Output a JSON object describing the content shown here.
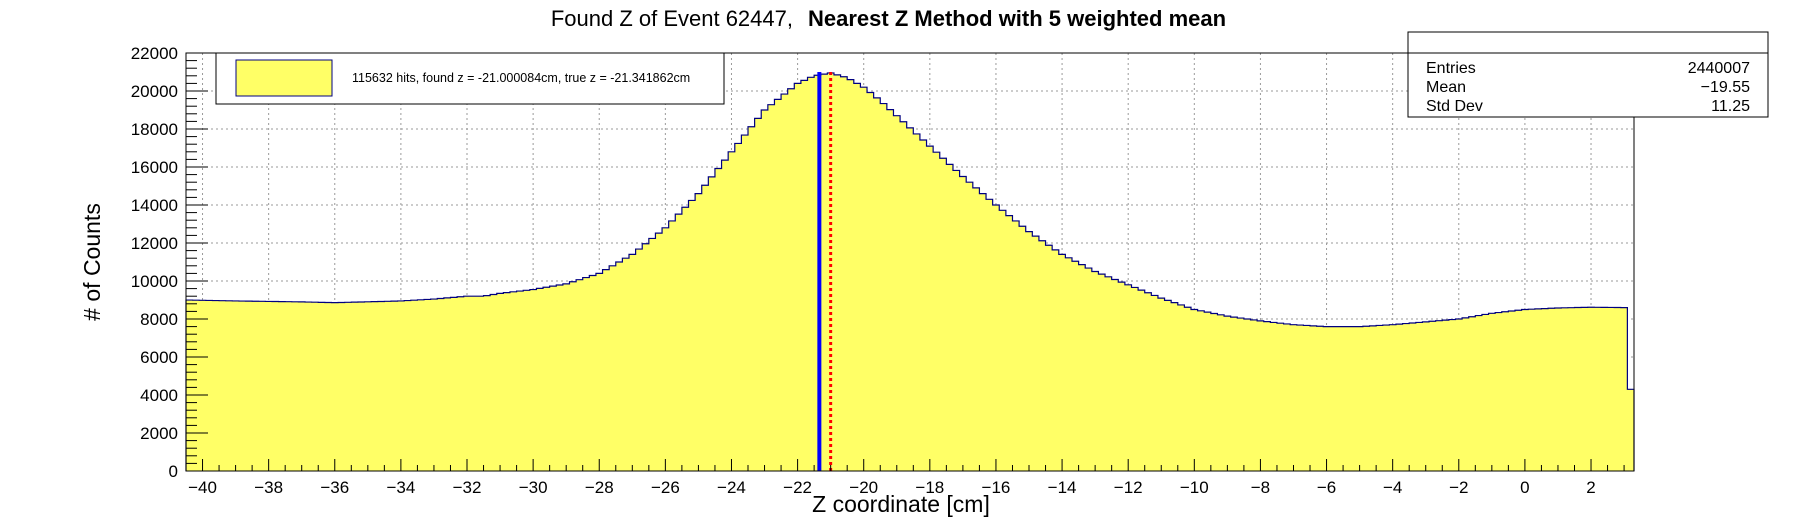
{
  "chart_data": {
    "type": "histogram",
    "title": "Found Z of Event 62447,",
    "title_bold": "Nearest Z Method with 5 weighted mean",
    "xlabel": "Z coordinate [cm]",
    "ylabel": "# of Counts",
    "xlim": [
      -40.5,
      3.3
    ],
    "ylim": [
      0,
      22000
    ],
    "x_ticks": [
      -40,
      -38,
      -36,
      -34,
      -32,
      -30,
      -28,
      -26,
      -24,
      -22,
      -20,
      -18,
      -16,
      -14,
      -12,
      -10,
      -8,
      -6,
      -4,
      -2,
      0,
      2
    ],
    "y_ticks": [
      0,
      2000,
      4000,
      6000,
      8000,
      10000,
      12000,
      14000,
      16000,
      18000,
      20000,
      22000
    ],
    "grid": true,
    "fill_color": "#ffff66",
    "line_color": "#000080",
    "profile": [
      [
        -40.5,
        9000
      ],
      [
        -39,
        8950
      ],
      [
        -37,
        8900
      ],
      [
        -36,
        8860
      ],
      [
        -34,
        8950
      ],
      [
        -33,
        9050
      ],
      [
        -32,
        9200
      ],
      [
        -31.5,
        9200
      ],
      [
        -31,
        9350
      ],
      [
        -30,
        9550
      ],
      [
        -29,
        9850
      ],
      [
        -28,
        10400
      ],
      [
        -27,
        11400
      ],
      [
        -26,
        12800
      ],
      [
        -25,
        14600
      ],
      [
        -24,
        16800
      ],
      [
        -23,
        19000
      ],
      [
        -22,
        20400
      ],
      [
        -21.5,
        20800
      ],
      [
        -21,
        20950
      ],
      [
        -20.5,
        20700
      ],
      [
        -20,
        20200
      ],
      [
        -19.5,
        19500
      ],
      [
        -19,
        18700
      ],
      [
        -18,
        17100
      ],
      [
        -17,
        15500
      ],
      [
        -16,
        14000
      ],
      [
        -15,
        12600
      ],
      [
        -14,
        11400
      ],
      [
        -13,
        10500
      ],
      [
        -12,
        9800
      ],
      [
        -11,
        9100
      ],
      [
        -10,
        8500
      ],
      [
        -9,
        8150
      ],
      [
        -8,
        7900
      ],
      [
        -7,
        7700
      ],
      [
        -6,
        7600
      ],
      [
        -5,
        7600
      ],
      [
        -4,
        7700
      ],
      [
        -3,
        7850
      ],
      [
        -2,
        8000
      ],
      [
        -1,
        8300
      ],
      [
        0,
        8500
      ],
      [
        1,
        8580
      ],
      [
        2,
        8620
      ],
      [
        3,
        8600
      ],
      [
        3.3,
        8600
      ]
    ],
    "last_bin_value": 4300,
    "found_z": -21.000084,
    "true_z": -21.341862,
    "true_z_line_color": "#0000ff",
    "found_z_line_color": "#ff0000",
    "legend": {
      "placement": "top-left",
      "entry": "115632 hits, found z = -21.000084cm, true z = -21.341862cm"
    },
    "stats": {
      "placement": "top-right",
      "rows": [
        {
          "label": "Entries",
          "value": "2440007"
        },
        {
          "label": "Mean",
          "value": "−19.55"
        },
        {
          "label": "Std Dev",
          "value": "11.25"
        }
      ]
    }
  }
}
